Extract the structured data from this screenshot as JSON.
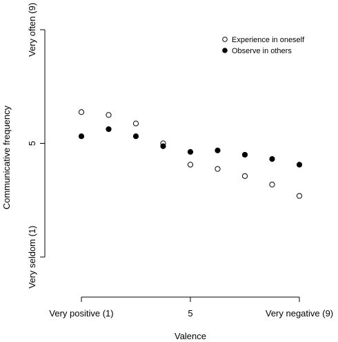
{
  "chart_data": {
    "type": "scatter",
    "title": "",
    "xlabel": "Valence",
    "ylabel": "Communicative frequency",
    "xlim": [
      1,
      9
    ],
    "ylim": [
      1,
      9
    ],
    "x_ticks": [
      {
        "value": 1,
        "label": "Very positive (1)"
      },
      {
        "value": 5,
        "label": "5"
      },
      {
        "value": 9,
        "label": "Very negative (9)"
      }
    ],
    "y_ticks": [
      {
        "value": 1,
        "label": "Very seldom (1)"
      },
      {
        "value": 5,
        "label": "5"
      },
      {
        "value": 9,
        "label": "Very often (9)"
      }
    ],
    "grid": false,
    "legend_position": "top-right",
    "series": [
      {
        "name": "Experience in oneself",
        "marker": "open-circle",
        "x": [
          1,
          2,
          3,
          4,
          5,
          6,
          7,
          8,
          9
        ],
        "y": [
          6.1,
          6.0,
          5.7,
          5.0,
          4.25,
          4.1,
          3.85,
          3.55,
          3.15
        ]
      },
      {
        "name": "Observe in others",
        "marker": "filled-circle",
        "x": [
          1,
          2,
          3,
          4,
          5,
          6,
          7,
          8,
          9
        ],
        "y": [
          5.25,
          5.5,
          5.25,
          4.9,
          4.7,
          4.75,
          4.6,
          4.45,
          4.25
        ]
      }
    ]
  }
}
